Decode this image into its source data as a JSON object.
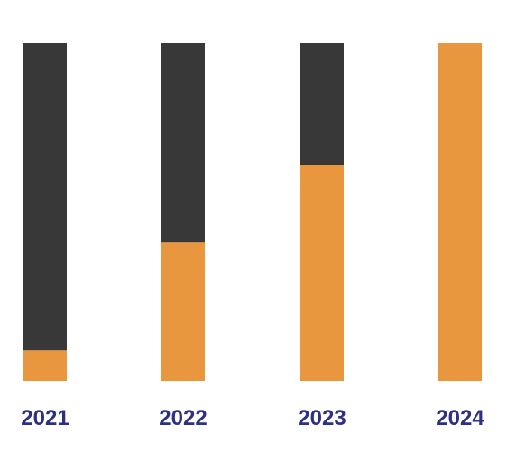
{
  "chart_data": {
    "type": "bar",
    "stacked": true,
    "categories": [
      "2021",
      "2022",
      "2023",
      "2024"
    ],
    "series": [
      {
        "values": [
          9,
          41,
          64,
          100
        ]
      },
      {
        "values": [
          91,
          59,
          36,
          0
        ]
      }
    ],
    "ylim": [
      0,
      100
    ],
    "grid": false,
    "legend": "none"
  },
  "colors": {
    "progress": "#E8973E",
    "remainder": "#383838",
    "label": "#2E3083",
    "background": "#FFFFFF"
  }
}
